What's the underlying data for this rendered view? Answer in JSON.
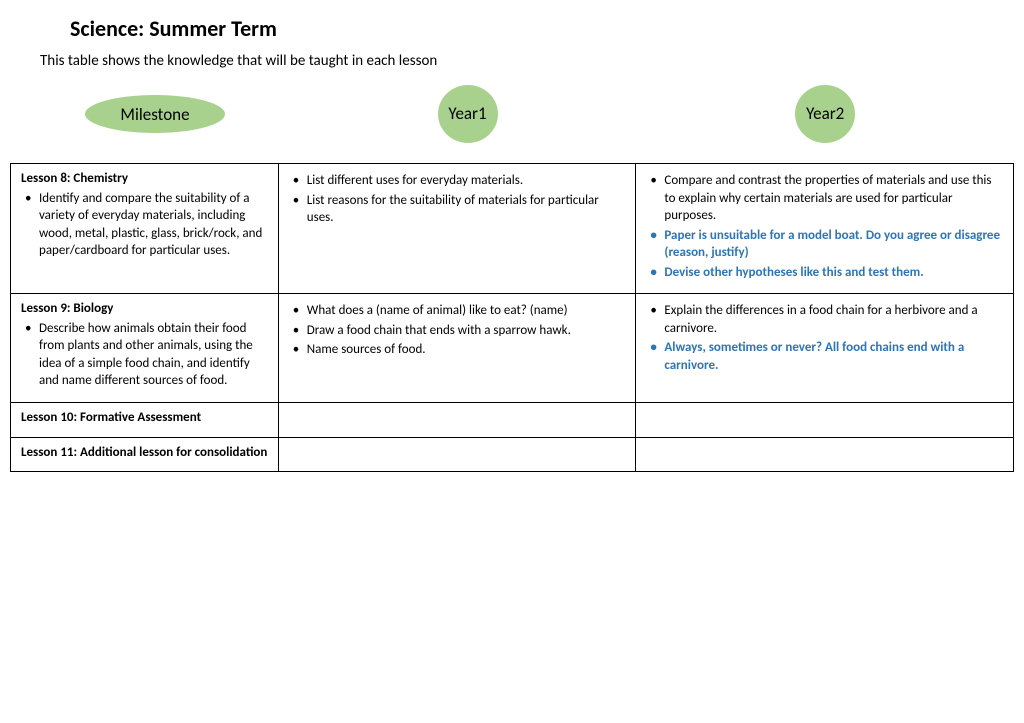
{
  "title": "Science:  Summer Term",
  "subtitle": "This table shows the knowledge that will be taught in each lesson",
  "headers": {
    "milestone": "Milestone",
    "year1_line1": "Year",
    "year1_line2": "1",
    "year2_line1": "Year",
    "year2_line2": "2"
  },
  "colors": {
    "shape_fill": "#a9d18e",
    "highlight_text": "#2e75b6",
    "border": "#000000",
    "background": "#ffffff"
  },
  "rows": [
    {
      "milestone_title": "Lesson 8: Chemistry",
      "milestone_bullets": [
        "Identify and compare the suitability of a variety of everyday materials, including wood, metal, plastic, glass, brick/rock, and paper/cardboard for particular uses."
      ],
      "year1": [
        {
          "text": "List different uses for everyday materials.",
          "highlight": false
        },
        {
          "text": "List reasons for the suitability of materials for particular uses.",
          "highlight": false
        }
      ],
      "year2": [
        {
          "text": "Compare and contrast the properties of materials and use this to explain why certain materials are used for particular purposes.",
          "highlight": false
        },
        {
          "text": "Paper is unsuitable for a model boat. Do you agree or disagree (reason, justify)",
          "highlight": true
        },
        {
          "text": "Devise other hypotheses like this and test them.",
          "highlight": true
        }
      ]
    },
    {
      "milestone_title": "Lesson 9: Biology",
      "milestone_bullets": [
        "Describe how animals obtain their food from plants and other animals, using the idea of a simple food chain, and identify and name different sources of food."
      ],
      "year1": [
        {
          "text": "What does a (name of animal) like to eat? (name)",
          "highlight": false
        },
        {
          "text": "Draw a food chain that ends with a sparrow hawk.",
          "highlight": false
        },
        {
          "text": "Name sources of food.",
          "highlight": false
        }
      ],
      "year2": [
        {
          "text": "Explain the differences in a food chain for a herbivore and a carnivore.",
          "highlight": false
        },
        {
          "text": "Always, sometimes or never? All food chains end with a carnivore.",
          "highlight": true
        }
      ]
    },
    {
      "milestone_title": "Lesson 10: Formative Assessment",
      "milestone_bullets": [],
      "year1": [],
      "year2": []
    },
    {
      "milestone_title": "Lesson 11: Additional lesson for consolidation",
      "milestone_bullets": [],
      "year1": [],
      "year2": []
    }
  ]
}
